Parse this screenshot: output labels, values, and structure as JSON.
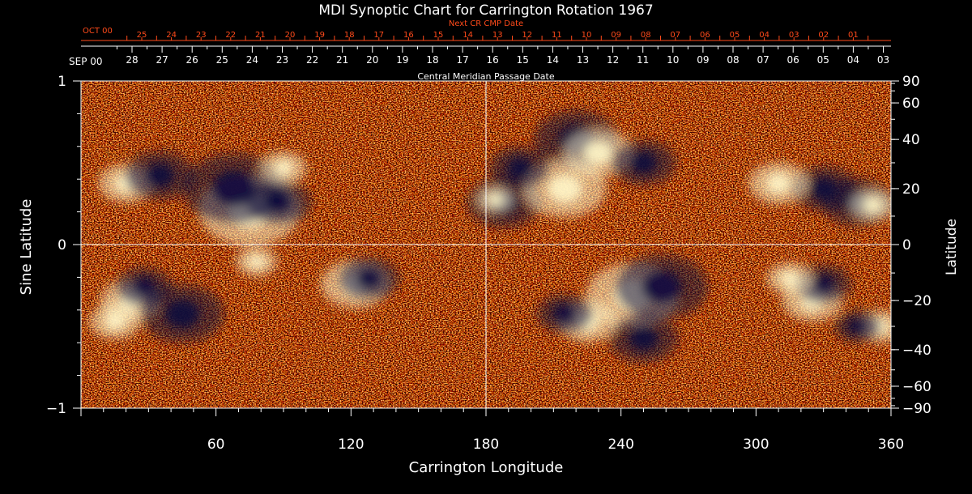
{
  "chart_data": {
    "type": "heatmap",
    "title": "MDI Synoptic Chart for Carrington Rotation 1967",
    "xlabel": "Carrington Longitude",
    "ylabel_left": "Sine Latitude",
    "ylabel_right": "Latitude",
    "xlim": [
      0,
      360
    ],
    "ylim_sine": [
      -1,
      1
    ],
    "x_ticks": [
      60,
      120,
      180,
      240,
      300,
      360
    ],
    "y_ticks_left": [
      {
        "value": 1,
        "label": "1"
      },
      {
        "value": 0,
        "label": "0"
      },
      {
        "value": -1,
        "label": "−1"
      }
    ],
    "y_ticks_right": [
      90,
      60,
      40,
      20,
      0,
      -20,
      -40,
      -60,
      -90
    ],
    "y_tick_labels_right": [
      "90",
      "60",
      "40",
      "20",
      "0",
      "−20",
      "−40",
      "−60",
      "−90"
    ],
    "central_meridian": {
      "label": "Central Meridian Passage Date",
      "month_label": "SEP 00",
      "dates": [
        "28",
        "27",
        "26",
        "25",
        "24",
        "23",
        "22",
        "21",
        "20",
        "19",
        "18",
        "17",
        "16",
        "15",
        "14",
        "13",
        "12",
        "11",
        "10",
        "09",
        "08",
        "07",
        "06",
        "05",
        "04",
        "03"
      ]
    },
    "next_cr": {
      "label": "Next CR CMP Date",
      "month_label": "OCT 00",
      "dates": [
        "25",
        "24",
        "23",
        "22",
        "21",
        "20",
        "19",
        "18",
        "17",
        "16",
        "15",
        "14",
        "13",
        "12",
        "11",
        "10",
        "09",
        "08",
        "07",
        "06",
        "05",
        "04",
        "03",
        "02",
        "01"
      ]
    },
    "colors": {
      "background_field": "#e8400f",
      "positive_polarity": "#fff6c8",
      "negative_polarity": "#0c0c3c",
      "axes": "#ffffff",
      "secondary_labels": "#ff4a1a"
    },
    "active_regions": [
      {
        "lon": 75,
        "lat": 12,
        "polarity": "positive",
        "size": 2.2
      },
      {
        "lon": 68,
        "lat": 20,
        "polarity": "negative",
        "size": 2.2
      },
      {
        "lon": 88,
        "lat": 15,
        "polarity": "negative",
        "size": 1.4
      },
      {
        "lon": 20,
        "lat": 22,
        "polarity": "positive",
        "size": 1.2
      },
      {
        "lon": 35,
        "lat": 25,
        "polarity": "negative",
        "size": 1.5
      },
      {
        "lon": 90,
        "lat": 28,
        "polarity": "positive",
        "size": 1.0
      },
      {
        "lon": 78,
        "lat": -6,
        "polarity": "positive",
        "size": 0.9
      },
      {
        "lon": 122,
        "lat": -14,
        "polarity": "positive",
        "size": 1.5
      },
      {
        "lon": 128,
        "lat": -12,
        "polarity": "negative",
        "size": 1.3
      },
      {
        "lon": 22,
        "lat": -20,
        "polarity": "positive",
        "size": 1.3
      },
      {
        "lon": 28,
        "lat": -15,
        "polarity": "negative",
        "size": 1.2
      },
      {
        "lon": 45,
        "lat": -25,
        "polarity": "negative",
        "size": 1.8
      },
      {
        "lon": 15,
        "lat": -28,
        "polarity": "positive",
        "size": 1.1
      },
      {
        "lon": 188,
        "lat": 15,
        "polarity": "negative",
        "size": 1.6
      },
      {
        "lon": 184,
        "lat": 16,
        "polarity": "positive",
        "size": 0.8
      },
      {
        "lon": 220,
        "lat": 40,
        "polarity": "negative",
        "size": 1.8
      },
      {
        "lon": 230,
        "lat": 34,
        "polarity": "positive",
        "size": 1.5
      },
      {
        "lon": 215,
        "lat": 20,
        "polarity": "positive",
        "size": 1.8
      },
      {
        "lon": 250,
        "lat": 30,
        "polarity": "negative",
        "size": 1.4
      },
      {
        "lon": 195,
        "lat": 28,
        "polarity": "negative",
        "size": 1.3
      },
      {
        "lon": 245,
        "lat": -18,
        "polarity": "positive",
        "size": 2.0
      },
      {
        "lon": 258,
        "lat": -15,
        "polarity": "negative",
        "size": 2.0
      },
      {
        "lon": 250,
        "lat": -35,
        "polarity": "negative",
        "size": 1.5
      },
      {
        "lon": 225,
        "lat": -28,
        "polarity": "positive",
        "size": 1.3
      },
      {
        "lon": 215,
        "lat": -25,
        "polarity": "negative",
        "size": 1.2
      },
      {
        "lon": 345,
        "lat": 15,
        "polarity": "negative",
        "size": 1.5
      },
      {
        "lon": 352,
        "lat": 14,
        "polarity": "positive",
        "size": 1.0
      },
      {
        "lon": 330,
        "lat": 20,
        "polarity": "negative",
        "size": 1.4
      },
      {
        "lon": 310,
        "lat": 22,
        "polarity": "positive",
        "size": 1.3
      },
      {
        "lon": 325,
        "lat": -20,
        "polarity": "positive",
        "size": 1.3
      },
      {
        "lon": 330,
        "lat": -14,
        "polarity": "negative",
        "size": 1.2
      },
      {
        "lon": 315,
        "lat": -12,
        "polarity": "positive",
        "size": 1.0
      },
      {
        "lon": 355,
        "lat": -30,
        "polarity": "positive",
        "size": 1.0
      },
      {
        "lon": 345,
        "lat": -30,
        "polarity": "negative",
        "size": 1.0
      }
    ]
  }
}
